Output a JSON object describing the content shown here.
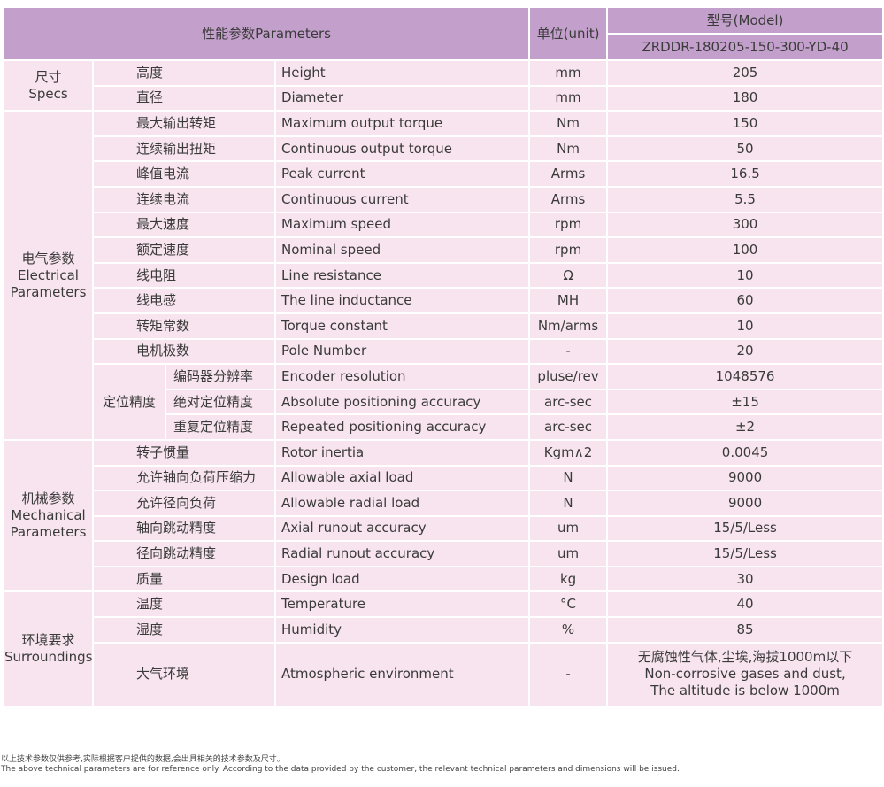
{
  "header": {
    "parameters": "性能参数Parameters",
    "unit": "单位(unit)",
    "model_label": "型号(Model)",
    "model": "ZRDDR-180205-150-300-YD-40"
  },
  "groups": [
    {
      "cn": "尺寸",
      "en": "Specs",
      "rows": [
        {
          "cn": "高度",
          "en": "Height",
          "unit": "mm",
          "value": "205"
        },
        {
          "cn": "直径",
          "en": "Diameter",
          "unit": "mm",
          "value": "180"
        }
      ]
    },
    {
      "cn": "电气参数",
      "en": "Electrical Parameters",
      "rows": [
        {
          "cn": "最大输出转矩",
          "en": "Maximum output torque",
          "unit": "Nm",
          "value": "150"
        },
        {
          "cn": "连续输出扭矩",
          "en": "Continuous output torque",
          "unit": "Nm",
          "value": "50"
        },
        {
          "cn": "峰值电流",
          "en": "Peak current",
          "unit": "Arms",
          "value": "16.5"
        },
        {
          "cn": "连续电流",
          "en": "Continuous current",
          "unit": "Arms",
          "value": "5.5"
        },
        {
          "cn": "最大速度",
          "en": "Maximum speed",
          "unit": "rpm",
          "value": "300"
        },
        {
          "cn": "额定速度",
          "en": "Nominal speed",
          "unit": "rpm",
          "value": "100"
        },
        {
          "cn": "线电阻",
          "en": "Line resistance",
          "unit": "Ω",
          "value": "10"
        },
        {
          "cn": "线电感",
          "en": "The line inductance",
          "unit": "MH",
          "value": "60"
        },
        {
          "cn": "转矩常数",
          "en": "Torque constant",
          "unit": "Nm/arms",
          "value": "10"
        },
        {
          "cn": "电机极数",
          "en": "Pole Number",
          "unit": "-",
          "value": "20"
        },
        {
          "subgroup": "定位精度",
          "cn": "编码器分辨率",
          "en": "Encoder resolution",
          "unit": "pluse/rev",
          "value": "1048576"
        },
        {
          "subgroup": "定位精度",
          "cn": "绝对定位精度",
          "en": "Absolute positioning accuracy",
          "unit": "arc-sec",
          "value": "±15"
        },
        {
          "subgroup": "定位精度",
          "cn": "重复定位精度",
          "en": "Repeated positioning accuracy",
          "unit": "arc-sec",
          "value": "±2"
        }
      ]
    },
    {
      "cn": "机械参数",
      "en": "Mechanical Parameters",
      "rows": [
        {
          "cn": "转子惯量",
          "en": "Rotor inertia",
          "unit": "Kgm∧2",
          "value": "0.0045"
        },
        {
          "cn": "允许轴向负荷压缩力",
          "en": "Allowable axial load",
          "unit": "N",
          "value": "9000"
        },
        {
          "cn": "允许径向负荷",
          "en": "Allowable radial load",
          "unit": "N",
          "value": "9000"
        },
        {
          "cn": "轴向跳动精度",
          "en": "Axial runout accuracy",
          "unit": "um",
          "value": "15/5/Less"
        },
        {
          "cn": "径向跳动精度",
          "en": "Radial runout accuracy",
          "unit": "um",
          "value": "15/5/Less"
        },
        {
          "cn": "质量",
          "en": "Design load",
          "unit": "kg",
          "value": "30"
        }
      ]
    },
    {
      "cn": "环境要求",
      "en": "Surroundings",
      "rows": [
        {
          "cn": "温度",
          "en": "Temperature",
          "unit": "°C",
          "value": "40"
        },
        {
          "cn": "湿度",
          "en": "Humidity",
          "unit": "%",
          "value": "85"
        },
        {
          "cn": "大气环境",
          "en": "Atmospheric environment",
          "unit": "-",
          "value": "无腐蚀性气体,尘埃,海拔1000m以下\nNon-corrosive gases and dust,\nThe altitude is below 1000m",
          "tall": true
        }
      ]
    }
  ],
  "footer": {
    "cn": "以上技术参数仅供参考,实际根据客户提供的数据,会出具相关的技术参数及尺寸。",
    "en": "The above technical parameters are for reference only. According to the data provided by the customer, the relevant technical parameters and dimensions will be issued."
  }
}
